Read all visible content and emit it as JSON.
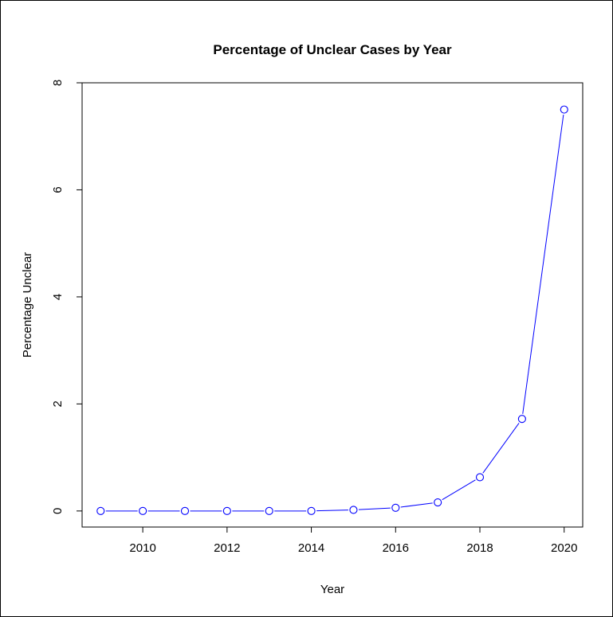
{
  "chart_data": {
    "type": "line",
    "title": "Percentage of Unclear Cases by Year",
    "xlabel": "Year",
    "ylabel": "Percentage Unclear",
    "x": [
      2009,
      2010,
      2011,
      2012,
      2013,
      2014,
      2015,
      2016,
      2017,
      2018,
      2019,
      2020
    ],
    "series": [
      {
        "values": [
          0,
          0,
          0,
          0,
          0,
          0,
          0.02,
          0.06,
          0.16,
          0.63,
          1.72,
          7.5
        ],
        "color": "#0000ff",
        "marker": "open-circle"
      }
    ],
    "xlim": [
      2008.56,
      2020.44
    ],
    "ylim": [
      -0.3,
      8.0
    ],
    "x_ticks": [
      "2010",
      "2012",
      "2014",
      "2016",
      "2018",
      "2020"
    ],
    "y_ticks": [
      "0",
      "2",
      "4",
      "6",
      "8"
    ],
    "grid": false,
    "legend": "none"
  }
}
